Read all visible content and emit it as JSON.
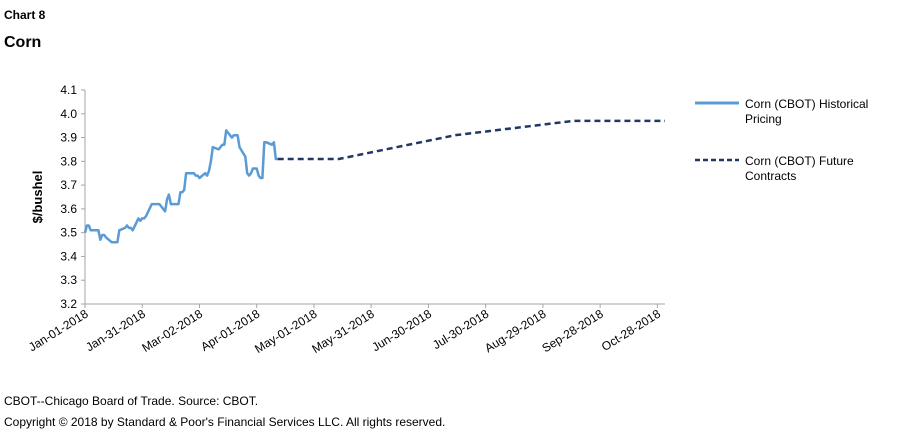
{
  "header": {
    "chart_label": "Chart 8",
    "title": "Corn"
  },
  "footer": {
    "source": "CBOT--Chicago Board of Trade. Source: CBOT.",
    "copyright": "Copyright © 2018 by Standard & Poor's Financial Services LLC. All rights reserved."
  },
  "chart_data": {
    "type": "line",
    "title": "Corn",
    "ylabel": "$/bushel",
    "xlabel": "",
    "ylim": [
      3.2,
      4.1
    ],
    "yticks": [
      "3.2",
      "3.3",
      "3.4",
      "3.5",
      "3.6",
      "3.7",
      "3.8",
      "3.9",
      "4.0",
      "4.1"
    ],
    "xlim": [
      "2018-01-01",
      "2018-11-01"
    ],
    "xticks": [
      {
        "date": "2018-01-01",
        "label": "Jan-01-2018"
      },
      {
        "date": "2018-01-31",
        "label": "Jan-31-2018"
      },
      {
        "date": "2018-03-02",
        "label": "Mar-02-2018"
      },
      {
        "date": "2018-04-01",
        "label": "Apr-01-2018"
      },
      {
        "date": "2018-05-01",
        "label": "May-01-2018"
      },
      {
        "date": "2018-05-31",
        "label": "May-31-2018"
      },
      {
        "date": "2018-06-30",
        "label": "Jun-30-2018"
      },
      {
        "date": "2018-07-30",
        "label": "Jul-30-2018"
      },
      {
        "date": "2018-08-29",
        "label": "Aug-29-2018"
      },
      {
        "date": "2018-09-28",
        "label": "Sep-28-2018"
      },
      {
        "date": "2018-10-28",
        "label": "Oct-28-2018"
      }
    ],
    "grid": false,
    "legend_position": "right",
    "series": [
      {
        "name": "Corn (CBOT) Historical Pricing",
        "style": "solid",
        "color": "#5B9BD5",
        "points": [
          [
            "2018-01-01",
            3.5
          ],
          [
            "2018-01-02",
            3.53
          ],
          [
            "2018-01-03",
            3.53
          ],
          [
            "2018-01-04",
            3.51
          ],
          [
            "2018-01-05",
            3.51
          ],
          [
            "2018-01-08",
            3.51
          ],
          [
            "2018-01-09",
            3.47
          ],
          [
            "2018-01-10",
            3.49
          ],
          [
            "2018-01-11",
            3.49
          ],
          [
            "2018-01-12",
            3.48
          ],
          [
            "2018-01-15",
            3.46
          ],
          [
            "2018-01-16",
            3.46
          ],
          [
            "2018-01-17",
            3.46
          ],
          [
            "2018-01-18",
            3.46
          ],
          [
            "2018-01-19",
            3.51
          ],
          [
            "2018-01-22",
            3.52
          ],
          [
            "2018-01-23",
            3.53
          ],
          [
            "2018-01-24",
            3.52
          ],
          [
            "2018-01-25",
            3.52
          ],
          [
            "2018-01-26",
            3.51
          ],
          [
            "2018-01-29",
            3.56
          ],
          [
            "2018-01-30",
            3.55
          ],
          [
            "2018-01-31",
            3.56
          ],
          [
            "2018-02-01",
            3.56
          ],
          [
            "2018-02-02",
            3.57
          ],
          [
            "2018-02-05",
            3.62
          ],
          [
            "2018-02-06",
            3.62
          ],
          [
            "2018-02-07",
            3.62
          ],
          [
            "2018-02-08",
            3.62
          ],
          [
            "2018-02-09",
            3.62
          ],
          [
            "2018-02-12",
            3.59
          ],
          [
            "2018-02-13",
            3.64
          ],
          [
            "2018-02-14",
            3.66
          ],
          [
            "2018-02-15",
            3.62
          ],
          [
            "2018-02-16",
            3.62
          ],
          [
            "2018-02-19",
            3.62
          ],
          [
            "2018-02-20",
            3.67
          ],
          [
            "2018-02-21",
            3.67
          ],
          [
            "2018-02-22",
            3.68
          ],
          [
            "2018-02-23",
            3.75
          ],
          [
            "2018-02-26",
            3.75
          ],
          [
            "2018-02-27",
            3.75
          ],
          [
            "2018-02-28",
            3.74
          ],
          [
            "2018-03-01",
            3.74
          ],
          [
            "2018-03-02",
            3.73
          ],
          [
            "2018-03-05",
            3.75
          ],
          [
            "2018-03-06",
            3.74
          ],
          [
            "2018-03-07",
            3.76
          ],
          [
            "2018-03-08",
            3.8
          ],
          [
            "2018-03-09",
            3.86
          ],
          [
            "2018-03-12",
            3.85
          ],
          [
            "2018-03-13",
            3.86
          ],
          [
            "2018-03-14",
            3.87
          ],
          [
            "2018-03-15",
            3.87
          ],
          [
            "2018-03-16",
            3.93
          ],
          [
            "2018-03-19",
            3.9
          ],
          [
            "2018-03-20",
            3.91
          ],
          [
            "2018-03-21",
            3.91
          ],
          [
            "2018-03-22",
            3.91
          ],
          [
            "2018-03-23",
            3.86
          ],
          [
            "2018-03-26",
            3.82
          ],
          [
            "2018-03-27",
            3.75
          ],
          [
            "2018-03-28",
            3.74
          ],
          [
            "2018-03-29",
            3.75
          ],
          [
            "2018-03-30",
            3.77
          ],
          [
            "2018-04-01",
            3.77
          ],
          [
            "2018-04-02",
            3.74
          ],
          [
            "2018-04-03",
            3.73
          ],
          [
            "2018-04-04",
            3.73
          ],
          [
            "2018-04-05",
            3.88
          ],
          [
            "2018-04-06",
            3.88
          ],
          [
            "2018-04-09",
            3.87
          ],
          [
            "2018-04-10",
            3.88
          ],
          [
            "2018-04-11",
            3.81
          ],
          [
            "2018-04-12",
            3.81
          ]
        ]
      },
      {
        "name": "Corn (CBOT) Future Contracts",
        "style": "dashed",
        "color": "#1F3864",
        "points": [
          [
            "2018-04-12",
            3.81
          ],
          [
            "2018-05-14",
            3.81
          ],
          [
            "2018-07-14",
            3.91
          ],
          [
            "2018-09-14",
            3.97
          ],
          [
            "2018-11-01",
            3.97
          ]
        ]
      }
    ]
  }
}
